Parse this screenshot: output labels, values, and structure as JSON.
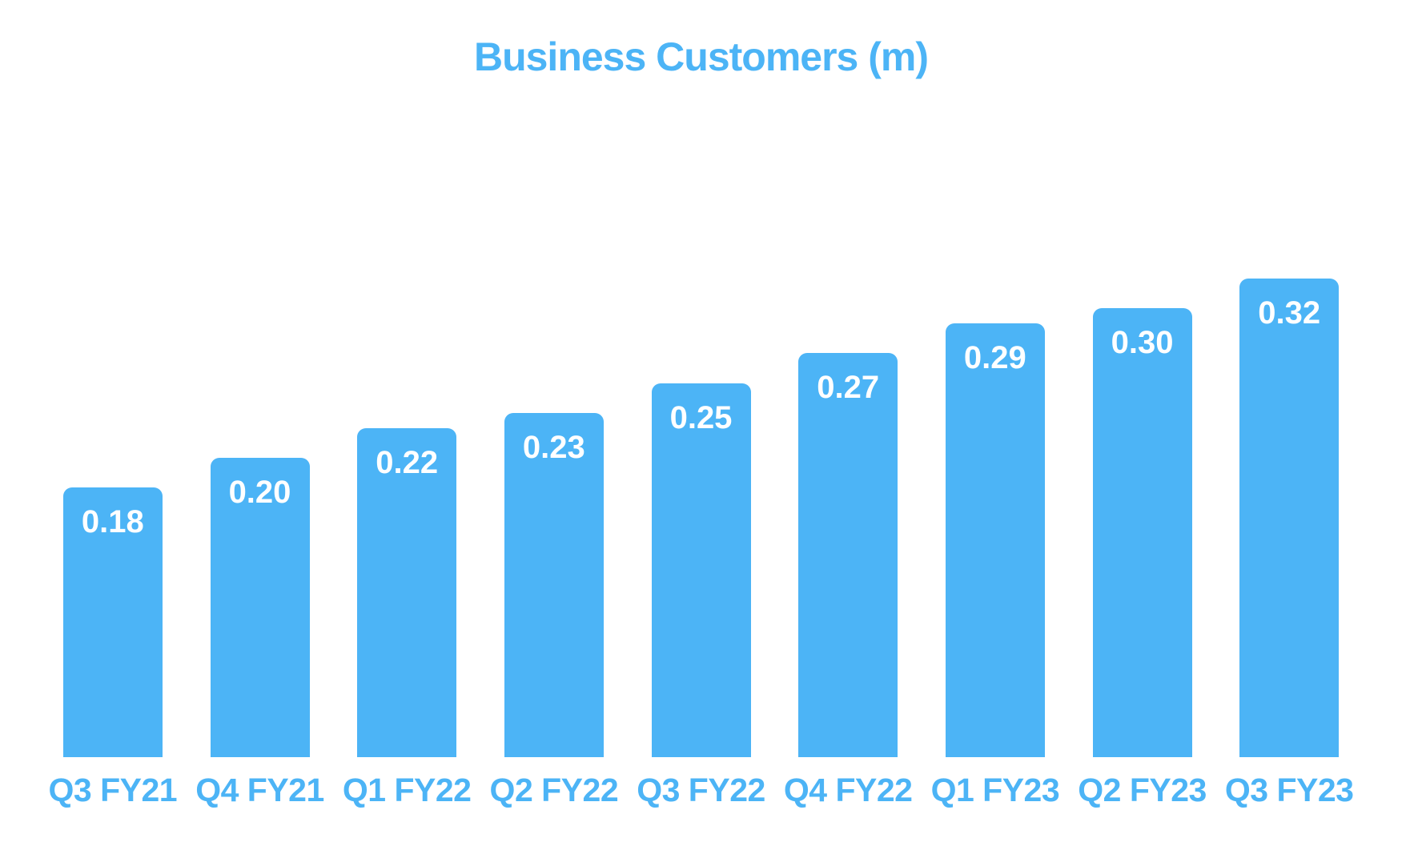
{
  "colors": {
    "background": "#ffffff",
    "accent_blue": "#4cb4f6",
    "bar_fill": "#4cb4f6",
    "value_label_text": "#ffffff"
  },
  "chart_data": {
    "type": "bar",
    "title": "Business Customers (m)",
    "categories": [
      "Q3 FY21",
      "Q4 FY21",
      "Q1 FY22",
      "Q2 FY22",
      "Q3 FY22",
      "Q4 FY22",
      "Q1 FY23",
      "Q2 FY23",
      "Q3 FY23"
    ],
    "values": [
      0.18,
      0.2,
      0.22,
      0.23,
      0.25,
      0.27,
      0.29,
      0.3,
      0.32
    ],
    "value_labels": [
      "0.18",
      "0.20",
      "0.22",
      "0.23",
      "0.25",
      "0.27",
      "0.29",
      "0.30",
      "0.32"
    ],
    "series_name": "Business Customers (m)",
    "xlabel": "",
    "ylabel": "",
    "ylim": [
      0,
      0.43
    ],
    "grid": false,
    "legend": false,
    "y_axis_visible": false,
    "bar_label_position": "inside-top"
  }
}
